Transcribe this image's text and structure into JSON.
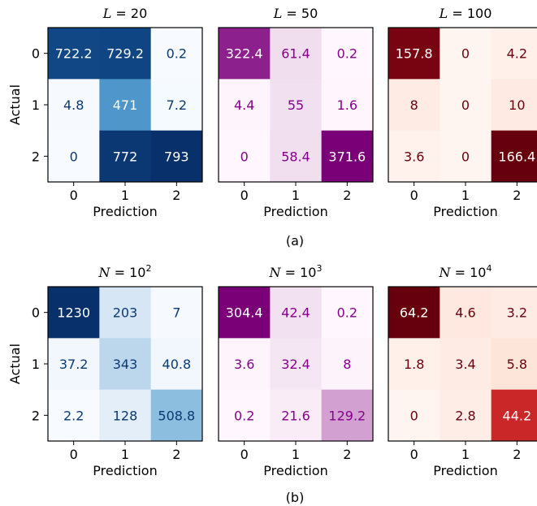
{
  "figure": {
    "panel_labels": [
      "(a)",
      "(b)"
    ]
  },
  "chart_data": [
    {
      "type": "heatmap",
      "row": 0,
      "col": 0,
      "colormap": "blues",
      "title_var": "L",
      "title_eq": " = 20",
      "title_exp": "",
      "xlabel": "Prediction",
      "ylabel": "Actual",
      "x_ticks": [
        "0",
        "1",
        "2"
      ],
      "y_ticks": [
        "0",
        "1",
        "2"
      ],
      "values": [
        [
          722.2,
          729.2,
          0.2
        ],
        [
          4.8,
          471,
          7.2
        ],
        [
          0,
          772,
          793
        ]
      ],
      "value_labels": [
        [
          "722.2",
          "729.2",
          "0.2"
        ],
        [
          "4.8",
          "471",
          "7.2"
        ],
        [
          "0",
          "772",
          "793"
        ]
      ]
    },
    {
      "type": "heatmap",
      "row": 0,
      "col": 1,
      "colormap": "purples",
      "title_var": "L",
      "title_eq": " = 50",
      "title_exp": "",
      "xlabel": "Prediction",
      "ylabel": "",
      "x_ticks": [
        "0",
        "1",
        "2"
      ],
      "y_ticks": [],
      "values": [
        [
          322.4,
          61.4,
          0.2
        ],
        [
          4.4,
          55,
          1.6
        ],
        [
          0,
          58.4,
          371.6
        ]
      ],
      "value_labels": [
        [
          "322.4",
          "61.4",
          "0.2"
        ],
        [
          "4.4",
          "55",
          "1.6"
        ],
        [
          "0",
          "58.4",
          "371.6"
        ]
      ]
    },
    {
      "type": "heatmap",
      "row": 0,
      "col": 2,
      "colormap": "reds",
      "title_var": "L",
      "title_eq": " = 100",
      "title_exp": "",
      "xlabel": "Prediction",
      "ylabel": "",
      "x_ticks": [
        "0",
        "1",
        "2"
      ],
      "y_ticks": [],
      "values": [
        [
          157.8,
          0,
          4.2
        ],
        [
          8,
          0,
          10
        ],
        [
          3.6,
          0,
          166.4
        ]
      ],
      "value_labels": [
        [
          "157.8",
          "0",
          "4.2"
        ],
        [
          "8",
          "0",
          "10"
        ],
        [
          "3.6",
          "0",
          "166.4"
        ]
      ]
    },
    {
      "type": "heatmap",
      "row": 1,
      "col": 0,
      "colormap": "blues",
      "title_var": "N",
      "title_eq": " = 10",
      "title_exp": "2",
      "xlabel": "Prediction",
      "ylabel": "Actual",
      "x_ticks": [
        "0",
        "1",
        "2"
      ],
      "y_ticks": [
        "0",
        "1",
        "2"
      ],
      "values": [
        [
          1230,
          203,
          7
        ],
        [
          37.2,
          343,
          40.8
        ],
        [
          2.2,
          128,
          508.8
        ]
      ],
      "value_labels": [
        [
          "1230",
          "203",
          "7"
        ],
        [
          "37.2",
          "343",
          "40.8"
        ],
        [
          "2.2",
          "128",
          "508.8"
        ]
      ]
    },
    {
      "type": "heatmap",
      "row": 1,
      "col": 1,
      "colormap": "purples",
      "title_var": "N",
      "title_eq": " = 10",
      "title_exp": "3",
      "xlabel": "Prediction",
      "ylabel": "",
      "x_ticks": [
        "0",
        "1",
        "2"
      ],
      "y_ticks": [],
      "values": [
        [
          304.4,
          42.4,
          0.2
        ],
        [
          3.6,
          32.4,
          8
        ],
        [
          0.2,
          21.6,
          129.2
        ]
      ],
      "value_labels": [
        [
          "304.4",
          "42.4",
          "0.2"
        ],
        [
          "3.6",
          "32.4",
          "8"
        ],
        [
          "0.2",
          "21.6",
          "129.2"
        ]
      ]
    },
    {
      "type": "heatmap",
      "row": 1,
      "col": 2,
      "colormap": "reds",
      "title_var": "N",
      "title_eq": " = 10",
      "title_exp": "4",
      "xlabel": "Prediction",
      "ylabel": "",
      "x_ticks": [
        "0",
        "1",
        "2"
      ],
      "y_ticks": [],
      "values": [
        [
          64.2,
          4.6,
          3.2
        ],
        [
          1.8,
          3.4,
          5.8
        ],
        [
          0,
          2.8,
          44.2
        ]
      ],
      "value_labels": [
        [
          "64.2",
          "4.6",
          "3.2"
        ],
        [
          "1.8",
          "3.4",
          "5.8"
        ],
        [
          "0",
          "2.8",
          "44.2"
        ]
      ]
    }
  ]
}
